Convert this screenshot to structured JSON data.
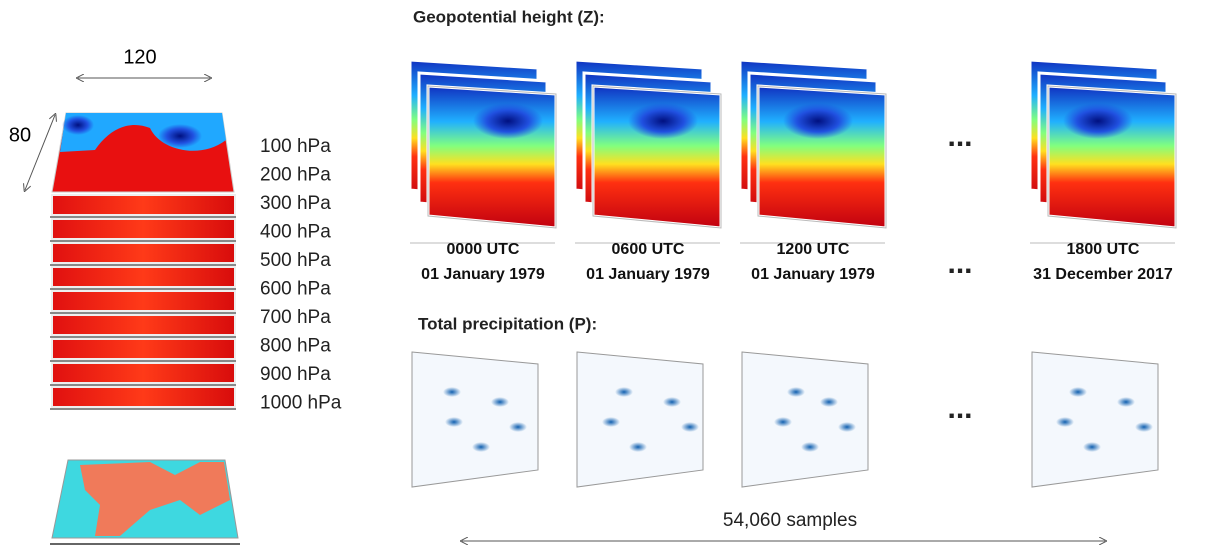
{
  "grid": {
    "width_label": "120",
    "height_label": "80"
  },
  "levels": [
    "100 hPa",
    "200 hPa",
    "300 hPa",
    "400 hPa",
    "500 hPa",
    "600 hPa",
    "700 hPa",
    "800 hPa",
    "900 hPa",
    "1000 hPa"
  ],
  "geopotential": {
    "title": "Geopotential height (Z):",
    "samples": [
      {
        "time": "0000 UTC",
        "date": "01 January 1979"
      },
      {
        "time": "0600 UTC",
        "date": "01 January 1979"
      },
      {
        "time": "1200 UTC",
        "date": "01 January 1979"
      },
      {
        "time": "1800 UTC",
        "date": "31 December 2017"
      }
    ]
  },
  "ellipsis": "...",
  "precipitation": {
    "title": "Total precipitation (P):"
  },
  "samples_label": "54,060 samples"
}
